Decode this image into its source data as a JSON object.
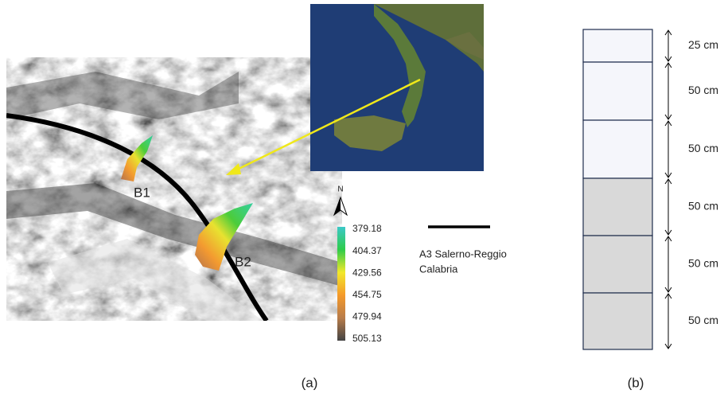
{
  "panel_a": {
    "labels": {
      "b1": "B1",
      "b2": "B2",
      "north": "N"
    },
    "legend": {
      "values": [
        379.18,
        404.37,
        429.56,
        454.75,
        479.94,
        505.13
      ]
    },
    "road_label": [
      "A3 Salerno-Reggio",
      "Calabria"
    ],
    "caption": "(a)"
  },
  "panel_b": {
    "layers": [
      "25 cm",
      "50 cm",
      "50 cm",
      "50 cm",
      "50 cm",
      "50 cm"
    ],
    "caption": "(b)"
  }
}
